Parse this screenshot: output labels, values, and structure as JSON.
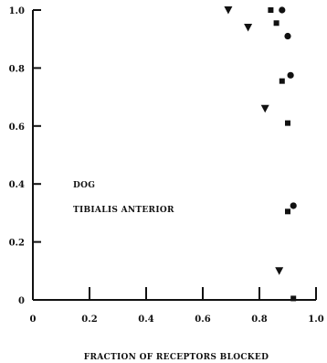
{
  "chart_data": {
    "type": "scatter",
    "xlabel": "FRACTION OF RECEPTORS BLOCKED",
    "ylabel": "",
    "xlim": [
      0,
      1.0
    ],
    "ylim": [
      0,
      1.0
    ],
    "x_ticks": [
      {
        "value": 0,
        "label": "0"
      },
      {
        "value": 0.2,
        "label": "0.2"
      },
      {
        "value": 0.4,
        "label": "0.4"
      },
      {
        "value": 0.6,
        "label": "0.6"
      },
      {
        "value": 0.8,
        "label": "0.8"
      },
      {
        "value": 1.0,
        "label": "1.0"
      }
    ],
    "y_ticks": [
      {
        "value": 0,
        "label": "0"
      },
      {
        "value": 0.2,
        "label": "0.2"
      },
      {
        "value": 0.4,
        "label": "0.4"
      },
      {
        "value": 0.6,
        "label": "0.6"
      },
      {
        "value": 0.8,
        "label": "0.8"
      },
      {
        "value": 1.0,
        "label": "1.0"
      }
    ],
    "annotations": [
      "DOG",
      "TIBIALIS ANTERIOR"
    ],
    "grid": false,
    "series": [
      {
        "marker": "triangle-down",
        "points": [
          [
            0.69,
            1.0
          ],
          [
            0.76,
            0.94
          ],
          [
            0.82,
            0.66
          ],
          [
            0.87,
            0.1
          ]
        ]
      },
      {
        "marker": "square",
        "points": [
          [
            0.84,
            1.0
          ],
          [
            0.86,
            0.955
          ],
          [
            0.88,
            0.755
          ],
          [
            0.9,
            0.61
          ],
          [
            0.9,
            0.305
          ],
          [
            0.92,
            0.005
          ]
        ]
      },
      {
        "marker": "circle",
        "points": [
          [
            0.88,
            1.0
          ],
          [
            0.9,
            0.91
          ],
          [
            0.91,
            0.775
          ],
          [
            0.92,
            0.325
          ]
        ]
      }
    ],
    "color": "#111111"
  }
}
